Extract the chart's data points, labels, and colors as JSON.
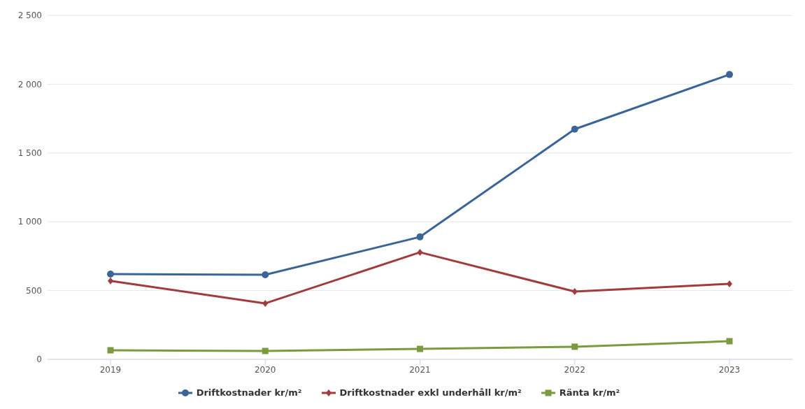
{
  "chart_data": {
    "type": "line",
    "categories": [
      "2019",
      "2020",
      "2021",
      "2022",
      "2023"
    ],
    "series": [
      {
        "name": "Driftkostnader kr/m²",
        "color": "#3a6598",
        "marker": "circle",
        "values": [
          620,
          615,
          890,
          1673,
          2070
        ]
      },
      {
        "name": "Driftkostnader exkl underhåll kr/m²",
        "color": "#a23b3b",
        "marker": "diamond",
        "values": [
          570,
          407,
          778,
          493,
          549
        ]
      },
      {
        "name": "Ränta kr/m²",
        "color": "#7a9b3e",
        "marker": "square",
        "values": [
          66,
          61,
          76,
          92,
          132
        ]
      }
    ],
    "ylim": [
      0,
      2500
    ],
    "yticks": [
      0,
      500,
      {
        "value": 1000,
        "label": "1 000"
      },
      {
        "value": 1500,
        "label": "1 500"
      },
      {
        "value": 2000,
        "label": "2 000"
      },
      {
        "value": 2500,
        "label": "2 500"
      }
    ],
    "grid": "y",
    "legend": "bottom",
    "line_style": "solid"
  }
}
